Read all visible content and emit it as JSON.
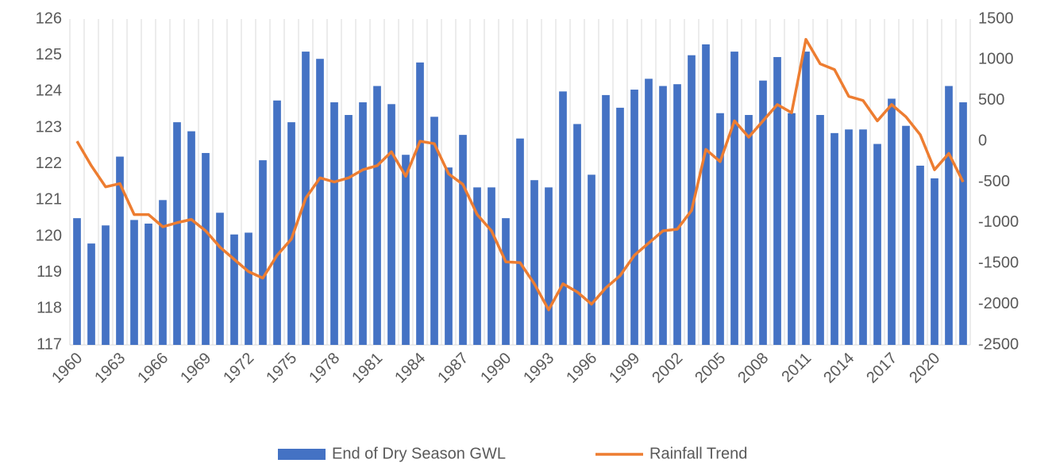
{
  "chart_data": {
    "type": "bar-line",
    "categories": [
      "1960",
      null,
      null,
      "1963",
      null,
      null,
      "1966",
      null,
      null,
      "1969",
      null,
      null,
      "1972",
      null,
      null,
      "1975",
      null,
      null,
      "1978",
      null,
      null,
      "1981",
      null,
      null,
      "1984",
      null,
      null,
      "1987",
      null,
      null,
      "1990",
      null,
      null,
      "1993",
      null,
      null,
      "1996",
      null,
      null,
      "1999",
      null,
      null,
      "2002",
      null,
      null,
      "2005",
      null,
      null,
      "2008",
      null,
      null,
      "2011",
      null,
      null,
      "2014",
      null,
      null,
      "2017",
      null,
      null,
      "2020",
      null,
      null
    ],
    "series": [
      {
        "name": "End of Dry Season GWL",
        "color": "#4472c4",
        "type": "bar",
        "axis": "y",
        "values": [
          120.5,
          119.8,
          120.3,
          122.2,
          120.45,
          120.35,
          121.0,
          123.15,
          122.9,
          122.3,
          120.65,
          120.05,
          120.1,
          122.1,
          123.75,
          123.15,
          125.1,
          124.9,
          123.7,
          123.35,
          123.7,
          124.15,
          123.65,
          122.25,
          124.8,
          123.3,
          121.9,
          122.8,
          121.35,
          121.35,
          120.5,
          122.7,
          121.55,
          121.35,
          124.0,
          123.1,
          121.7,
          123.9,
          123.55,
          124.05,
          124.35,
          124.15,
          124.2,
          125.0,
          125.3,
          123.4,
          125.1,
          123.35,
          124.3,
          124.95,
          123.4,
          125.1,
          123.35,
          122.85,
          122.95,
          122.95,
          122.55,
          123.8,
          123.05,
          121.95,
          121.6,
          124.15,
          123.7
        ]
      },
      {
        "name": "Rainfall Trend",
        "color": "#ed7d31",
        "type": "line",
        "axis": "y2",
        "values": [
          0,
          -300,
          -560,
          -520,
          -900,
          -900,
          -1050,
          -1000,
          -960,
          -1100,
          -1300,
          -1450,
          -1600,
          -1680,
          -1400,
          -1200,
          -700,
          -450,
          -500,
          -450,
          -350,
          -300,
          -130,
          -430,
          0,
          -30,
          -400,
          -530,
          -900,
          -1100,
          -1480,
          -1490,
          -1750,
          -2070,
          -1750,
          -1850,
          -2000,
          -1800,
          -1650,
          -1400,
          -1250,
          -1100,
          -1080,
          -850,
          -100,
          -250,
          250,
          50,
          250,
          450,
          350,
          1250,
          950,
          880,
          550,
          500,
          250,
          450,
          300,
          80,
          -350,
          -150,
          -500
        ]
      }
    ],
    "ylim": [
      117,
      126
    ],
    "yticks": [
      117,
      118,
      119,
      120,
      121,
      122,
      123,
      124,
      125,
      126
    ],
    "y2lim": [
      -2500,
      1500
    ],
    "y2ticks": [
      -2500,
      -2000,
      -1500,
      -1000,
      -500,
      0,
      500,
      1000,
      1500
    ],
    "grid": true,
    "legend": "bottom"
  }
}
